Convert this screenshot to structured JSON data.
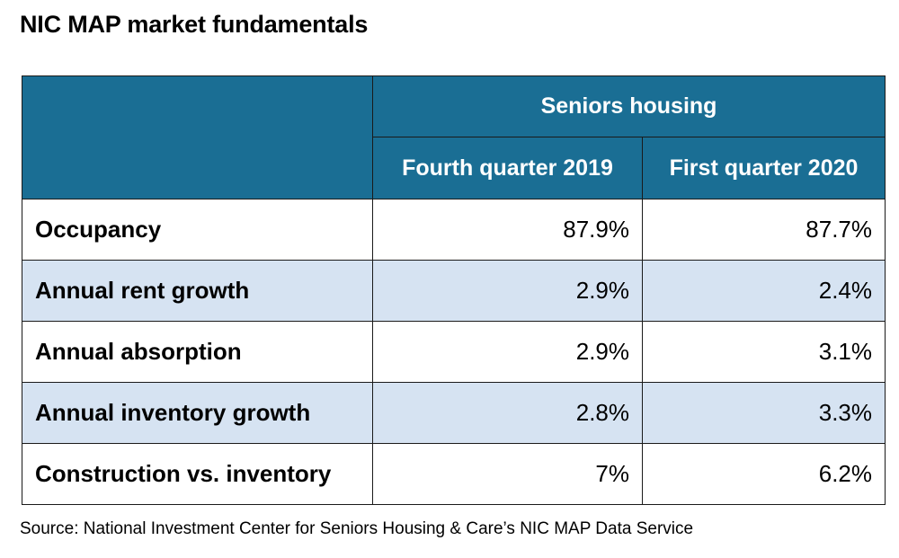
{
  "title": "NIC MAP market fundamentals",
  "source": "Source: National Investment Center for Seniors Housing & Care’s NIC MAP Data Service",
  "colors": {
    "header_bg": "#1a6e94",
    "header_text": "#ffffff",
    "alt_row_bg": "#d6e3f2"
  },
  "chart_data": {
    "type": "table",
    "title": "NIC MAP market fundamentals",
    "group_header": "Seniors housing",
    "columns": [
      "Fourth quarter 2019",
      "First quarter 2020"
    ],
    "rows": [
      {
        "label": "Occupancy",
        "values": [
          "87.9%",
          "87.7%"
        ]
      },
      {
        "label": "Annual rent growth",
        "values": [
          "2.9%",
          "2.4%"
        ]
      },
      {
        "label": "Annual absorption",
        "values": [
          "2.9%",
          "3.1%"
        ]
      },
      {
        "label": "Annual inventory growth",
        "values": [
          "2.8%",
          "3.3%"
        ]
      },
      {
        "label": "Construction vs. inventory",
        "values": [
          "7%",
          "6.2%"
        ]
      }
    ]
  }
}
